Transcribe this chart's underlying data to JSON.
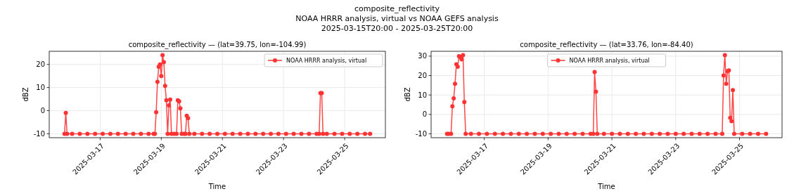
{
  "chart_data": [
    {
      "type": "line",
      "title": "composite_reflectivity — (lat=39.75, lon=-104.99)",
      "annotations": [
        "composite_reflectivity",
        "NOAA HRRR analysis, virtual vs NOAA GEFS analysis",
        "2025-03-15T20:00 - 2025-03-25T20:00"
      ],
      "xlabel": "Time",
      "ylabel": "dBZ",
      "xlim": [
        "2025-03-15T08:00",
        "2025-03-26T08:00"
      ],
      "xticks": [
        "2025-03-17",
        "2025-03-19",
        "2025-03-21",
        "2025-03-23",
        "2025-03-25"
      ],
      "ylim": [
        -11.7,
        25.7
      ],
      "yticks": [
        -10,
        0,
        10,
        20
      ],
      "grid": true,
      "legend": "top right",
      "marker": "circle",
      "line_style": "solid",
      "series": [
        {
          "name": "NOAA HRRR analysis, virtual",
          "color": "#ff3333",
          "x": [
            "2025-03-15T20:00",
            "2025-03-15T21:00",
            "2025-03-15T22:00",
            "2025-03-16T02:00",
            "2025-03-16T08:00",
            "2025-03-16T14:00",
            "2025-03-16T20:00",
            "2025-03-17T02:00",
            "2025-03-17T08:00",
            "2025-03-17T14:00",
            "2025-03-17T20:00",
            "2025-03-18T02:00",
            "2025-03-18T08:00",
            "2025-03-18T14:00",
            "2025-03-18T18:00",
            "2025-03-18T19:00",
            "2025-03-18T20:00",
            "2025-03-18T21:00",
            "2025-03-18T22:00",
            "2025-03-18T23:00",
            "2025-03-19T00:00",
            "2025-03-19T01:00",
            "2025-03-19T02:00",
            "2025-03-19T03:00",
            "2025-03-19T04:00",
            "2025-03-19T05:00",
            "2025-03-19T06:00",
            "2025-03-19T07:00",
            "2025-03-19T08:00",
            "2025-03-19T10:00",
            "2025-03-19T12:00",
            "2025-03-19T13:00",
            "2025-03-19T14:00",
            "2025-03-19T15:00",
            "2025-03-19T16:00",
            "2025-03-19T18:00",
            "2025-03-19T19:00",
            "2025-03-19T20:00",
            "2025-03-19T21:00",
            "2025-03-19T22:00",
            "2025-03-20T02:00",
            "2025-03-20T08:00",
            "2025-03-20T14:00",
            "2025-03-20T20:00",
            "2025-03-21T02:00",
            "2025-03-21T08:00",
            "2025-03-21T14:00",
            "2025-03-21T20:00",
            "2025-03-22T02:00",
            "2025-03-22T08:00",
            "2025-03-22T14:00",
            "2025-03-22T20:00",
            "2025-03-23T02:00",
            "2025-03-23T08:00",
            "2025-03-23T14:00",
            "2025-03-23T20:00",
            "2025-03-24T02:00",
            "2025-03-24T04:00",
            "2025-03-24T05:00",
            "2025-03-24T06:00",
            "2025-03-24T07:00",
            "2025-03-24T10:00",
            "2025-03-24T16:00",
            "2025-03-24T22:00",
            "2025-03-25T04:00",
            "2025-03-25T10:00",
            "2025-03-25T16:00",
            "2025-03-25T20:00"
          ],
          "values": [
            -10,
            -1,
            -10,
            -10,
            -10,
            -10,
            -10,
            -10,
            -10,
            -10,
            -10,
            -10,
            -10,
            -10,
            -10,
            -10,
            -0.7,
            12.5,
            19,
            20,
            15,
            24,
            21,
            10.7,
            4.5,
            -10,
            2.3,
            4.8,
            -10,
            -10,
            -10,
            4.5,
            4,
            1,
            -10,
            -10,
            -10,
            -2.2,
            -3.3,
            -10,
            -10,
            -10,
            -10,
            -10,
            -10,
            -10,
            -10,
            -10,
            -10,
            -10,
            -10,
            -10,
            -10,
            -10,
            -10,
            -10,
            -10,
            -10,
            7.6,
            7.6,
            -10,
            -10,
            -10,
            -10,
            -10,
            -10,
            -10,
            -10
          ]
        }
      ]
    },
    {
      "type": "line",
      "title": "composite_reflectivity — (lat=33.76, lon=-84.40)",
      "xlabel": "Time",
      "ylabel": "dBZ",
      "xlim": [
        "2025-03-15T08:00",
        "2025-03-26T08:00"
      ],
      "xticks": [
        "2025-03-17",
        "2025-03-19",
        "2025-03-21",
        "2025-03-23",
        "2025-03-25"
      ],
      "ylim": [
        -12,
        32.5
      ],
      "yticks": [
        -10,
        0,
        10,
        20,
        30
      ],
      "grid": true,
      "legend": "top",
      "marker": "circle",
      "line_style": "solid",
      "series": [
        {
          "name": "NOAA HRRR analysis, virtual",
          "color": "#ff3333",
          "x": [
            "2025-03-15T20:00",
            "2025-03-15T21:00",
            "2025-03-15T23:00",
            "2025-03-16T00:00",
            "2025-03-16T01:00",
            "2025-03-16T02:00",
            "2025-03-16T03:00",
            "2025-03-16T04:00",
            "2025-03-16T05:00",
            "2025-03-16T06:00",
            "2025-03-16T07:00",
            "2025-03-16T08:00",
            "2025-03-16T09:00",
            "2025-03-16T10:00",
            "2025-03-16T14:00",
            "2025-03-16T20:00",
            "2025-03-17T02:00",
            "2025-03-17T08:00",
            "2025-03-17T14:00",
            "2025-03-17T20:00",
            "2025-03-18T02:00",
            "2025-03-18T08:00",
            "2025-03-18T14:00",
            "2025-03-18T20:00",
            "2025-03-19T02:00",
            "2025-03-19T08:00",
            "2025-03-19T14:00",
            "2025-03-19T20:00",
            "2025-03-20T02:00",
            "2025-03-20T08:00",
            "2025-03-20T10:00",
            "2025-03-20T11:00",
            "2025-03-20T12:00",
            "2025-03-20T13:00",
            "2025-03-20T18:00",
            "2025-03-21T00:00",
            "2025-03-21T06:00",
            "2025-03-21T12:00",
            "2025-03-21T18:00",
            "2025-03-22T00:00",
            "2025-03-22T06:00",
            "2025-03-22T12:00",
            "2025-03-22T18:00",
            "2025-03-23T00:00",
            "2025-03-23T06:00",
            "2025-03-23T12:00",
            "2025-03-23T18:00",
            "2025-03-24T00:00",
            "2025-03-24T06:00",
            "2025-03-24T11:00",
            "2025-03-24T12:00",
            "2025-03-24T13:00",
            "2025-03-24T14:00",
            "2025-03-24T15:00",
            "2025-03-24T16:00",
            "2025-03-24T17:00",
            "2025-03-24T18:00",
            "2025-03-24T19:00",
            "2025-03-24T20:00",
            "2025-03-25T02:00",
            "2025-03-25T08:00",
            "2025-03-25T14:00",
            "2025-03-25T20:00"
          ],
          "values": [
            -10,
            -10,
            -10,
            4.2,
            8.3,
            15.8,
            25.8,
            24.5,
            30,
            29.5,
            28.3,
            30.5,
            6.4,
            -10,
            -10,
            -10,
            -10,
            -10,
            -10,
            -10,
            -10,
            -10,
            -10,
            -10,
            -10,
            -10,
            -10,
            -10,
            -10,
            -10,
            -10,
            21.8,
            11.7,
            -10,
            -10,
            -10,
            -10,
            -10,
            -10,
            -10,
            -10,
            -10,
            -10,
            -10,
            -10,
            -10,
            -10,
            -10,
            -10,
            -10,
            20,
            30.5,
            15.8,
            22.3,
            22.6,
            -1.8,
            -3.5,
            12.5,
            -10,
            -10,
            -10,
            -10,
            -10
          ]
        }
      ]
    }
  ]
}
